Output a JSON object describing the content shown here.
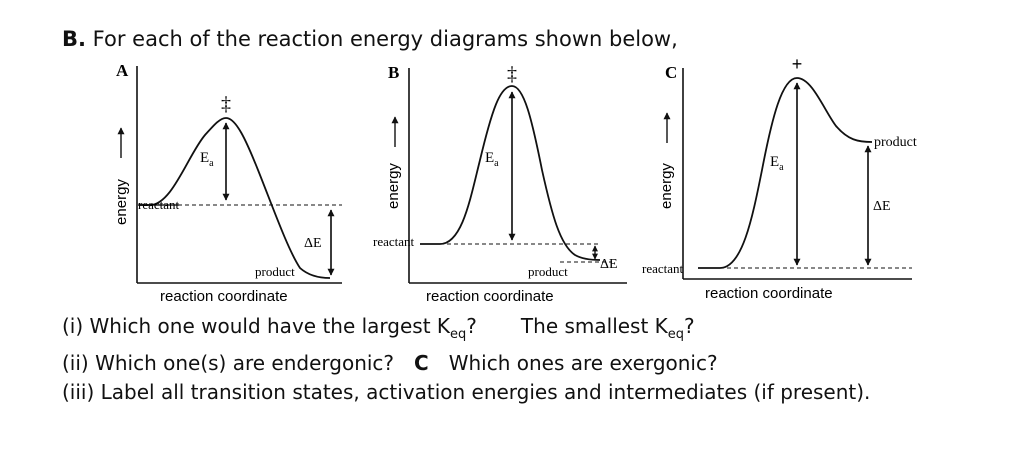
{
  "heading": {
    "part": "B.",
    "text": "For each of the reaction energy diagrams shown below,"
  },
  "diagrams": [
    {
      "panel": "A",
      "ylabel": "energy",
      "xlabel": "reaction coordinate",
      "transition_state": "‡",
      "ea_label": "E",
      "ea_sub": "a",
      "dE_label": "ΔE",
      "reactant_label": "reactant",
      "product_label": "product"
    },
    {
      "panel": "B",
      "ylabel": "energy",
      "xlabel": "reaction coordinate",
      "transition_state": "‡",
      "ea_label": "E",
      "ea_sub": "a",
      "dE_label": "ΔE",
      "reactant_label": "reactant",
      "product_label": "product"
    },
    {
      "panel": "C",
      "ylabel": "energy",
      "xlabel": "reaction coordinate",
      "transition_state": "+",
      "ea_label": "E",
      "ea_sub": "a",
      "dE_label": "ΔE",
      "reactant_label": "reactant",
      "product_label": "product"
    }
  ],
  "questions": {
    "q1_a": "(i) Which one would have the largest K",
    "q1_a_sub": "eq",
    "q1_a_end": "?",
    "q1_b": "The smallest K",
    "q1_b_sub": "eq",
    "q1_b_end": "?",
    "q2_a": "(ii) Which one(s) are endergonic?",
    "q2_answer": "C",
    "q2_b": "Which ones are exergonic?",
    "q3": "(iii) Label all transition states, activation energies and intermediates (if present)."
  }
}
